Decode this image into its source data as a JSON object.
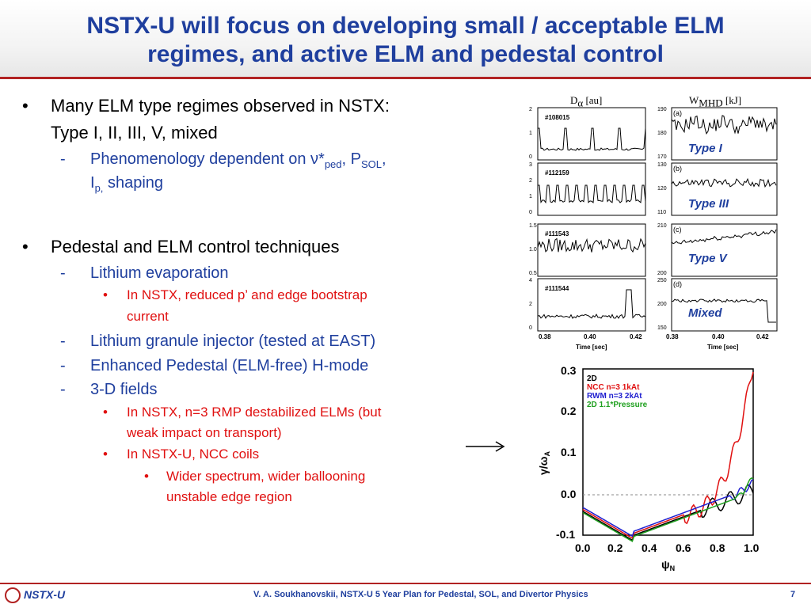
{
  "title": {
    "line1": "NSTX-U will focus on developing small / acceptable ELM",
    "line2": "regimes, and active ELM and pedestal control"
  },
  "bullets": {
    "b1_line1": "Many ELM type regimes observed in NSTX:",
    "b1_line2": "Type I, II, III, V, mixed",
    "b1_sub_a": "Phenomenology dependent on ",
    "b1_sub_nu": "ν*",
    "b1_sub_ped": "ped",
    "b1_sub_p": ", P",
    "b1_sub_sol": "SOL",
    "b1_sub_comma": ",",
    "b1_sub_i": "I",
    "b1_sub_ip": "p,",
    "b1_sub_shaping": " shaping",
    "b2_line1": "Pedestal and ELM control techniques",
    "li_evap": "Lithium evaporation",
    "li_evap_sub1": "In NSTX, reduced p’ and edge bootstrap",
    "li_evap_sub2": "current",
    "granule": "Lithium granule injector (tested at EAST)",
    "epm": "Enhanced Pedestal (ELM-free) H-mode",
    "fields3d": "3-D fields",
    "rmp1": "In NSTX, n=3 RMP destabilized ELMs (but",
    "rmp2": "weak impact on transport)",
    "ncc": "In NSTX-U, NCC coils",
    "wider1": "Wider spectrum, wider ballooning",
    "wider2": "unstable edge region",
    "bullet_glyph": "•",
    "dash_glyph": "-"
  },
  "elm_panels": {
    "left_title": "D",
    "left_title_sub": "α",
    "left_title_unit": " [au]",
    "right_title": "W",
    "right_title_sub": "MHD",
    "right_title_unit": " [kJ]",
    "shots": [
      "#108015",
      "#112159",
      "#111543",
      "#111544"
    ],
    "left_ticks": [
      [
        "2",
        "1",
        "0"
      ],
      [
        "3",
        "2",
        "1",
        "0"
      ],
      [
        "1.5",
        "1.0",
        "0.5"
      ],
      [
        "4",
        "2",
        "0"
      ]
    ],
    "right_ticks": [
      [
        "190",
        "180",
        "170"
      ],
      [
        "130",
        "120",
        "110"
      ],
      [
        "210",
        "200"
      ],
      [
        "250",
        "200",
        "150"
      ]
    ],
    "panel_tags": [
      "(a)",
      "(b)",
      "(c)",
      "(d)"
    ],
    "type_labels": [
      "Type I",
      "Type III",
      "Type V",
      "Mixed"
    ],
    "x_ticks": [
      "0.38",
      "0.40",
      "0.42"
    ],
    "x_label": "Time [sec]"
  },
  "gamma_plot": {
    "legend": [
      "2D",
      "NCC n=3 1kAt",
      "RWM n=3 2kAt",
      "2D 1.1*Pressure"
    ],
    "legend_colors": [
      "#000000",
      "#e01010",
      "#2020d0",
      "#20a020"
    ],
    "y_ticks": [
      "0.3",
      "0.2",
      "0.1",
      "0.0",
      "-0.1"
    ],
    "x_ticks": [
      "0.0",
      "0.2",
      "0.4",
      "0.6",
      "0.8",
      "1.0"
    ],
    "y_label": "γ/ω",
    "y_label_sub": "A",
    "x_label": "ψ",
    "x_label_sub": "N"
  },
  "arrow": "⟶",
  "footer": {
    "logo": "NSTX-U",
    "citation": "V. A. Soukhanovskii, NSTX-U 5 Year Plan for Pedestal, SOL, and Divertor Physics",
    "page": "7"
  },
  "colors": {
    "title": "#1f3f9e",
    "sub_blue": "#1f3f9e",
    "sub_red": "#e01010",
    "rule": "#b22222"
  }
}
